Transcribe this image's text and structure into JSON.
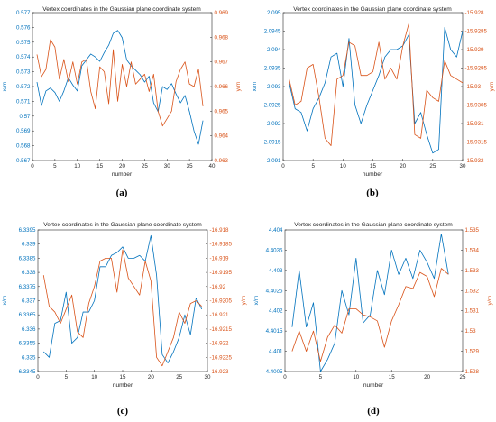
{
  "colors": {
    "left": "#0072BD",
    "right": "#D95319",
    "axis": "#262626"
  },
  "chart_data": [
    {
      "type": "line",
      "panel_label": "(a)",
      "title": "Vertex coordinates in the Gaussian plane coordinate system",
      "xlabel": "number",
      "ylabel_left": "x/m",
      "ylabel_right": "y/m",
      "xlim": [
        0,
        40
      ],
      "ylim_left": [
        0.567,
        0.577
      ],
      "ylim_right": [
        0.963,
        0.969
      ],
      "xticks": [
        0,
        5,
        10,
        15,
        20,
        25,
        30,
        35,
        40
      ],
      "xtick_labels": [
        "0",
        "5",
        "10",
        "15",
        "20",
        "25",
        "30",
        "35",
        "40"
      ],
      "yticks_left": [
        0.567,
        0.568,
        0.569,
        0.57,
        0.571,
        0.572,
        0.573,
        0.574,
        0.575,
        0.576,
        0.577
      ],
      "ytick_labels_left": [
        "0.567",
        "0.568",
        "0.569",
        "0.57",
        "0.571",
        "0.572",
        "0.573",
        "0.574",
        "0.575",
        "0.576",
        "0.577"
      ],
      "yticks_right": [
        0.963,
        0.964,
        0.965,
        0.966,
        0.967,
        0.968,
        0.969
      ],
      "ytick_labels_right": [
        "0.963",
        "0.964",
        "0.965",
        "0.966",
        "0.967",
        "0.968",
        "0.969"
      ],
      "series": [
        {
          "axis": "left",
          "x": [
            1,
            2,
            3,
            4,
            5,
            6,
            7,
            8,
            9,
            10,
            11,
            12,
            13,
            14,
            15,
            16,
            17,
            18,
            19,
            20,
            21,
            22,
            23,
            24,
            25,
            26,
            27,
            28,
            29,
            30,
            31,
            32,
            33,
            34,
            35,
            36,
            37,
            38
          ],
          "y": [
            0.5723,
            0.5707,
            0.5717,
            0.5719,
            0.5716,
            0.571,
            0.5717,
            0.5726,
            0.5721,
            0.5717,
            0.5734,
            0.5738,
            0.5742,
            0.574,
            0.5737,
            0.5743,
            0.5748,
            0.5756,
            0.5758,
            0.5753,
            0.5738,
            0.5734,
            0.5731,
            0.5728,
            0.5723,
            0.5727,
            0.5709,
            0.5703,
            0.572,
            0.5718,
            0.5722,
            0.5715,
            0.5709,
            0.5714,
            0.5703,
            0.569,
            0.5681,
            0.5697
          ]
        },
        {
          "axis": "right",
          "x": [
            1,
            2,
            3,
            4,
            5,
            6,
            7,
            8,
            9,
            10,
            11,
            12,
            13,
            14,
            15,
            16,
            17,
            18,
            19,
            20,
            21,
            22,
            23,
            24,
            25,
            26,
            27,
            28,
            29,
            30,
            31,
            32,
            33,
            34,
            35,
            36,
            37,
            38
          ],
          "y": [
            0.9673,
            0.9664,
            0.9667,
            0.9679,
            0.9676,
            0.9663,
            0.9671,
            0.9662,
            0.967,
            0.9661,
            0.967,
            0.9671,
            0.9658,
            0.9651,
            0.9668,
            0.9666,
            0.9653,
            0.9675,
            0.9654,
            0.9669,
            0.966,
            0.967,
            0.9661,
            0.9663,
            0.9665,
            0.9658,
            0.9665,
            0.965,
            0.9644,
            0.9647,
            0.965,
            0.9662,
            0.9667,
            0.967,
            0.9661,
            0.966,
            0.9667,
            0.9652
          ]
        }
      ]
    },
    {
      "type": "line",
      "panel_label": "(b)",
      "title": "Vertex coordinates in the Gaussian plane coordinate system",
      "xlabel": "number",
      "ylabel_left": "x/m",
      "ylabel_right": "y/m",
      "xlim": [
        0,
        30
      ],
      "ylim_left": [
        2.091,
        2.095
      ],
      "ylim_right": [
        -15.932,
        -15.928
      ],
      "xticks": [
        0,
        5,
        10,
        15,
        20,
        25,
        30
      ],
      "xtick_labels": [
        "0",
        "5",
        "10",
        "15",
        "20",
        "25",
        "30"
      ],
      "yticks_left": [
        2.091,
        2.0915,
        2.092,
        2.0925,
        2.093,
        2.0935,
        2.094,
        2.0945,
        2.095
      ],
      "ytick_labels_left": [
        "2.091",
        "2.0915",
        "2.092",
        "2.0925",
        "2.093",
        "2.0935",
        "2.094",
        "2.0945",
        "2.095"
      ],
      "yticks_right": [
        -15.932,
        -15.9315,
        -15.931,
        -15.9305,
        -15.93,
        -15.9295,
        -15.929,
        -15.9285,
        -15.928
      ],
      "ytick_labels_right": [
        "-15.932",
        "-15.9315",
        "-15.931",
        "-15.9305",
        "-15.93",
        "-15.9295",
        "-15.929",
        "-15.9285",
        "-15.928"
      ],
      "series": [
        {
          "axis": "left",
          "x": [
            1,
            2,
            3,
            4,
            5,
            6,
            7,
            8,
            9,
            10,
            11,
            12,
            13,
            14,
            15,
            16,
            17,
            18,
            19,
            20,
            21,
            22,
            23,
            24,
            25,
            26,
            27,
            28,
            29,
            30
          ],
          "y": [
            2.0931,
            2.0924,
            2.0923,
            2.0918,
            2.0924,
            2.0927,
            2.0931,
            2.0938,
            2.0939,
            2.093,
            2.0943,
            2.0925,
            2.092,
            2.0925,
            2.0929,
            2.0933,
            2.0938,
            2.094,
            2.094,
            2.0941,
            2.0944,
            2.092,
            2.0923,
            2.0917,
            2.0912,
            2.0913,
            2.0946,
            2.094,
            2.0938,
            2.0945
          ]
        },
        {
          "axis": "right",
          "x": [
            1,
            2,
            3,
            4,
            5,
            6,
            7,
            8,
            9,
            10,
            11,
            12,
            13,
            14,
            15,
            16,
            17,
            18,
            19,
            20,
            21,
            22,
            23,
            24,
            25,
            26,
            27,
            28,
            29,
            30
          ],
          "y": [
            -15.9298,
            -15.9305,
            -15.9304,
            -15.9295,
            -15.9294,
            -15.9303,
            -15.9314,
            -15.9316,
            -15.9298,
            -15.9297,
            -15.9288,
            -15.9289,
            -15.9297,
            -15.9297,
            -15.9296,
            -15.9288,
            -15.9298,
            -15.9295,
            -15.9298,
            -15.9289,
            -15.9283,
            -15.9313,
            -15.9314,
            -15.9301,
            -15.9303,
            -15.9304,
            -15.9293,
            -15.9297,
            -15.9298,
            -15.9299
          ]
        }
      ]
    },
    {
      "type": "line",
      "panel_label": "(c)",
      "title": "Vertex coordinates in the Gaussian plane coordinate system",
      "xlabel": "number",
      "ylabel_left": "x/m",
      "ylabel_right": "y/m",
      "xlim": [
        0,
        30
      ],
      "ylim_left": [
        6.3345,
        6.3395
      ],
      "ylim_right": [
        -16.923,
        -16.918
      ],
      "xticks": [
        0,
        5,
        10,
        15,
        20,
        25,
        30
      ],
      "xtick_labels": [
        "0",
        "5",
        "10",
        "15",
        "20",
        "25",
        "30"
      ],
      "yticks_left": [
        6.3345,
        6.335,
        6.3355,
        6.336,
        6.3365,
        6.337,
        6.3375,
        6.338,
        6.3385,
        6.339,
        6.3395
      ],
      "ytick_labels_left": [
        "6.3345",
        "6.335",
        "6.3355",
        "6.336",
        "6.3365",
        "6.337",
        "6.3375",
        "6.338",
        "6.3385",
        "6.339",
        "6.3395"
      ],
      "yticks_right": [
        -16.923,
        -16.9225,
        -16.922,
        -16.9215,
        -16.921,
        -16.9205,
        -16.92,
        -16.9195,
        -16.919,
        -16.9185,
        -16.918
      ],
      "ytick_labels_right": [
        "-16.923",
        "-16.9225",
        "-16.922",
        "-16.9215",
        "-16.921",
        "-16.9205",
        "-16.92",
        "-16.9195",
        "-16.919",
        "-16.9185",
        "-16.918"
      ],
      "series": [
        {
          "axis": "left",
          "x": [
            1,
            2,
            3,
            4,
            5,
            6,
            7,
            8,
            9,
            10,
            11,
            12,
            13,
            14,
            15,
            16,
            17,
            18,
            19,
            20,
            21,
            22,
            23,
            24,
            25,
            26,
            27,
            28,
            29
          ],
          "y": [
            6.3352,
            6.335,
            6.3362,
            6.3363,
            6.3373,
            6.3355,
            6.3357,
            6.3366,
            6.3366,
            6.337,
            6.3382,
            6.3382,
            6.3386,
            6.3387,
            6.3389,
            6.3385,
            6.3385,
            6.3386,
            6.3384,
            6.3393,
            6.3379,
            6.3351,
            6.3348,
            6.3352,
            6.3357,
            6.3365,
            6.3358,
            6.3371,
            6.3367
          ]
        },
        {
          "axis": "right",
          "x": [
            1,
            2,
            3,
            4,
            5,
            6,
            7,
            8,
            9,
            10,
            11,
            12,
            13,
            14,
            15,
            16,
            17,
            18,
            19,
            20,
            21,
            22,
            23,
            24,
            25,
            26,
            27,
            28,
            29
          ],
          "y": [
            -16.9196,
            -16.9207,
            -16.9209,
            -16.9213,
            -16.9208,
            -16.9203,
            -16.9216,
            -16.9218,
            -16.9206,
            -16.92,
            -16.9191,
            -16.919,
            -16.919,
            -16.9202,
            -16.9187,
            -16.9197,
            -16.92,
            -16.9203,
            -16.9191,
            -16.9198,
            -16.9225,
            -16.9228,
            -16.9223,
            -16.9218,
            -16.9209,
            -16.9213,
            -16.9206,
            -16.9205,
            -16.9207
          ]
        }
      ]
    },
    {
      "type": "line",
      "panel_label": "(d)",
      "title": "Vertex coordinates in the Gaussian plane coordinate system",
      "xlabel": "number",
      "ylabel_left": "x/m",
      "ylabel_right": "y/m",
      "xlim": [
        0,
        25
      ],
      "ylim_left": [
        4.4005,
        4.404
      ],
      "ylim_right": [
        1.528,
        1.535
      ],
      "xticks": [
        0,
        5,
        10,
        15,
        20,
        25
      ],
      "xtick_labels": [
        "0",
        "5",
        "10",
        "15",
        "20",
        "25"
      ],
      "yticks_left": [
        4.4005,
        4.401,
        4.4015,
        4.402,
        4.4025,
        4.403,
        4.4035,
        4.404
      ],
      "ytick_labels_left": [
        "4.4005",
        "4.401",
        "4.4015",
        "4.402",
        "4.4025",
        "4.403",
        "4.4035",
        "4.404"
      ],
      "yticks_right": [
        1.528,
        1.529,
        1.53,
        1.531,
        1.532,
        1.533,
        1.534,
        1.535
      ],
      "ytick_labels_right": [
        "1.528",
        "1.529",
        "1.53",
        "1.531",
        "1.532",
        "1.533",
        "1.534",
        "1.535"
      ],
      "series": [
        {
          "axis": "left",
          "x": [
            1,
            2,
            3,
            4,
            5,
            6,
            7,
            8,
            9,
            10,
            11,
            12,
            13,
            14,
            15,
            16,
            17,
            18,
            19,
            20,
            21,
            22,
            23
          ],
          "y": [
            4.4016,
            4.403,
            4.4016,
            4.4022,
            4.4005,
            4.4008,
            4.4012,
            4.4025,
            4.4019,
            4.4033,
            4.4017,
            4.4019,
            4.403,
            4.4024,
            4.4035,
            4.4029,
            4.4033,
            4.4028,
            4.4035,
            4.4032,
            4.4028,
            4.4039,
            4.4029
          ]
        },
        {
          "axis": "right",
          "x": [
            1,
            2,
            3,
            4,
            5,
            6,
            7,
            8,
            9,
            10,
            11,
            12,
            13,
            14,
            15,
            16,
            17,
            18,
            19,
            20,
            21,
            22,
            23
          ],
          "y": [
            1.529,
            1.53,
            1.529,
            1.53,
            1.5285,
            1.5297,
            1.5303,
            1.5299,
            1.5311,
            1.5311,
            1.5308,
            1.5307,
            1.5305,
            1.5292,
            1.5305,
            1.5313,
            1.5322,
            1.5321,
            1.5329,
            1.5327,
            1.5317,
            1.5331,
            1.5328
          ]
        }
      ]
    }
  ]
}
